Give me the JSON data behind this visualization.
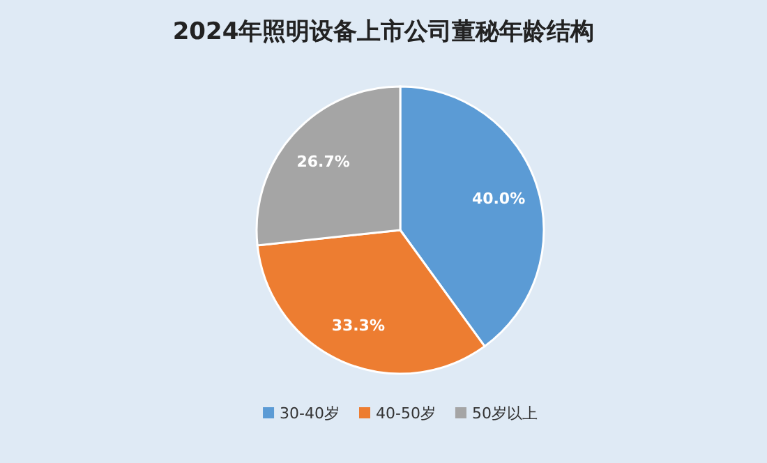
{
  "chart_data": {
    "type": "pie",
    "title": "2024年照明设备上市公司董秘年龄结构",
    "categories": [
      "30-40岁",
      "40-50岁",
      "50岁以上"
    ],
    "values": [
      40.0,
      33.3,
      26.7
    ],
    "value_labels": [
      "40.0%",
      "33.3%",
      "26.7%"
    ],
    "colors": [
      "#5b9bd5",
      "#ed7d31",
      "#a5a5a5"
    ],
    "legend": "bottom"
  }
}
